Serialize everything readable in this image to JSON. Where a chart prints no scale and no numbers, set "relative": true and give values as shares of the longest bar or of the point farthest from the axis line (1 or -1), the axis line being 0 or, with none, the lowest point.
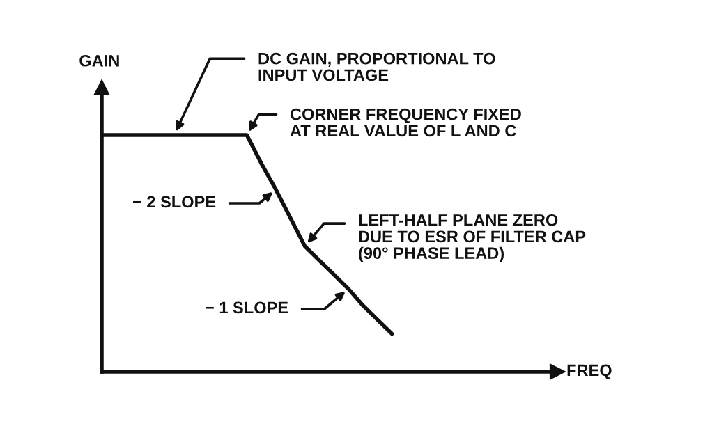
{
  "chart_data": {
    "type": "line",
    "relative": true,
    "ylabel": "GAIN",
    "categories": [
      null,
      null,
      null,
      null,
      null,
      null,
      null,
      null,
      null,
      null,
      null,
      null,
      null,
      null,
      null,
      null,
      null,
      null,
      null,
      null,
      null
    ],
    "series": [
      {
        "color": "#111111",
        "values": [
          1,
          1,
          1,
          1,
          1,
          1,
          1,
          1,
          1,
          1,
          1,
          0.88,
          0.77,
          0.65,
          0.53,
          0.47,
          0.41,
          0.35,
          0.28,
          0.22,
          0.16
        ]
      }
    ],
    "annotations": [
      "DC GAIN, PROPORTIONAL TO\nINPUT VOLTAGE",
      "CORNER FREQUENCY FIXED\nAT REAL VALUE OF L AND C",
      "− 2 SLOPE",
      "LEFT-HALF PLANE ZERO\nDUE TO ESR OF FILTER CAP\n(90° PHASE LEAD)",
      "− 1 SLOPE",
      "FREQ"
    ],
    "grid": false,
    "legend": false
  }
}
